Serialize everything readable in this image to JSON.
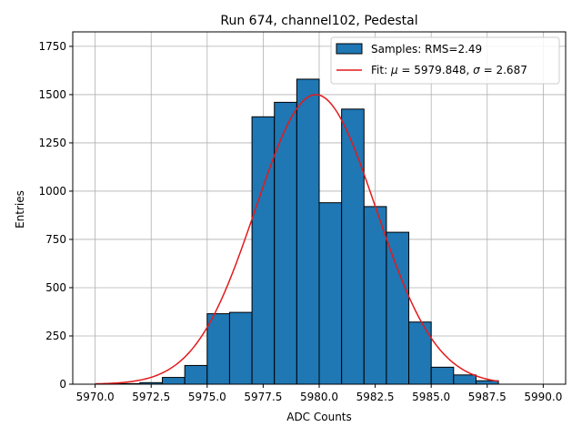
{
  "chart_data": {
    "type": "bar",
    "title": "Run 674, channel102, Pedestal",
    "xlabel": "ADC Counts",
    "ylabel": "Entries",
    "xlim": [
      5969.0,
      5991.0
    ],
    "ylim": [
      0,
      1825
    ],
    "grid": true,
    "legend_position": "top-right",
    "x_ticks": [
      5970.0,
      5972.5,
      5975.0,
      5977.5,
      5980.0,
      5982.5,
      5985.0,
      5987.5,
      5990.0
    ],
    "x_tick_labels": [
      "5970.0",
      "5972.5",
      "5975.0",
      "5977.5",
      "5980.0",
      "5982.5",
      "5985.0",
      "5987.5",
      "5990.0"
    ],
    "y_ticks": [
      0,
      250,
      500,
      750,
      1000,
      1250,
      1500,
      1750
    ],
    "y_tick_labels": [
      "0",
      "250",
      "500",
      "750",
      "1000",
      "1250",
      "1500",
      "1750"
    ],
    "histogram": {
      "name": "Samples: RMS=2.49",
      "color": "#1f77b4",
      "edgecolor": "#000000",
      "bin_width": 1.0,
      "bin_starts": [
        5971,
        5972,
        5973,
        5974,
        5975,
        5976,
        5977,
        5978,
        5979,
        5980,
        5981,
        5982,
        5983,
        5984,
        5985,
        5986,
        5987
      ],
      "values": [
        3,
        8,
        35,
        97,
        365,
        372,
        1385,
        1460,
        1580,
        940,
        1425,
        920,
        787,
        322,
        88,
        48,
        18
      ]
    },
    "fit": {
      "name": "Fit: μ = 5979.848, σ = 2.687",
      "label_prefix": "Fit: ",
      "mu_symbol": "μ",
      "mu_value": "= 5979.848, ",
      "sigma_symbol": "σ",
      "sigma_value": "= 2.687",
      "color": "#e41a1c",
      "mu": 5979.848,
      "sigma": 2.687,
      "amplitude": 1500,
      "x_range": [
        5970.0,
        5988.0
      ]
    }
  }
}
